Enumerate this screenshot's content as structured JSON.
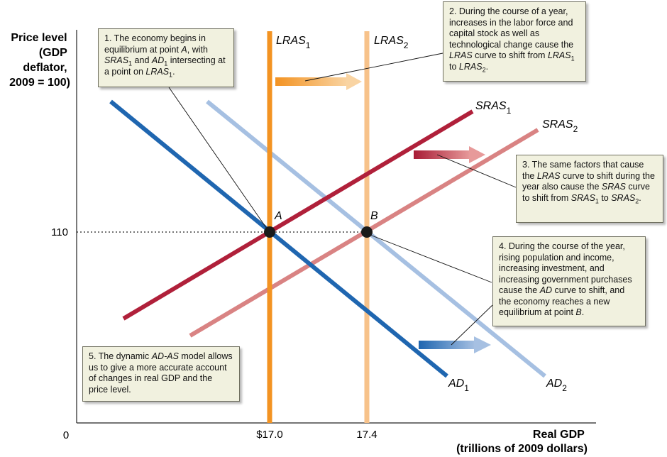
{
  "y_axis": {
    "title_lines": [
      "Price level",
      "(GDP",
      "deflator,",
      "2009 = 100)"
    ],
    "tick_label": "110"
  },
  "x_axis": {
    "title_lines": [
      "Real GDP",
      "(trillions of 2009 dollars)"
    ],
    "origin": "0",
    "tick_labels": [
      "$17.0",
      "17.4"
    ]
  },
  "curves": {
    "lras1": {
      "name": "LRAS",
      "sub": "1",
      "color": "#f39322"
    },
    "lras2": {
      "name": "LRAS",
      "sub": "2",
      "color": "#f7c28a"
    },
    "sras1": {
      "name": "SRAS",
      "sub": "1",
      "color": "#b0203a"
    },
    "sras2": {
      "name": "SRAS",
      "sub": "2",
      "color": "#d98383"
    },
    "ad1": {
      "name": "AD",
      "sub": "1",
      "color": "#1f66b0"
    },
    "ad2": {
      "name": "AD",
      "sub": "2",
      "color": "#a6c0e2"
    }
  },
  "points": {
    "a": {
      "label": "A"
    },
    "b": {
      "label": "B"
    }
  },
  "notes": {
    "n1": {
      "p1": "1.  The economy begins in equilibrium at point ",
      "a": "A",
      "p2": ", with ",
      "sras": "SRAS",
      "sras_sub": "1",
      "p3": " and ",
      "ad": "AD",
      "ad_sub": "1",
      "p4": " intersecting at a point on ",
      "lras": "LRAS",
      "lras_sub": "1",
      "p5": "."
    },
    "n2": {
      "p1": "2.  During the course of a year, increases in the labor force and capital stock as well as technological change cause the ",
      "lras_a": "LRAS",
      "p2": " curve to shift from ",
      "lras_b": "LRAS",
      "sub_b": "1",
      "p3": " to ",
      "lras_c": "LRAS",
      "sub_c": "2",
      "p4": "."
    },
    "n3": {
      "p1": "3.  The same factors that cause the ",
      "lras": "LRAS",
      "p2": " curve to shift during the year also cause the ",
      "sras_a": "SRAS",
      "p3": " curve to shift from ",
      "sras_b": "SRAS",
      "sub_b": "1",
      "p4": " to ",
      "sras_c": "SRAS",
      "sub_c": "2",
      "p5": "."
    },
    "n4": {
      "p1": "4.  During the course of the year, rising population and income, increasing investment, and increasing government purchases cause the ",
      "ad": "AD",
      "p2": " curve to shift, and the economy reaches a new equilibrium at point ",
      "b": "B",
      "p3": "."
    },
    "n5": {
      "p1": "5.  The dynamic ",
      "model": "AD-AS",
      "p2": " model allows us to give a more accurate account of changes in real GDP and the price level."
    }
  }
}
